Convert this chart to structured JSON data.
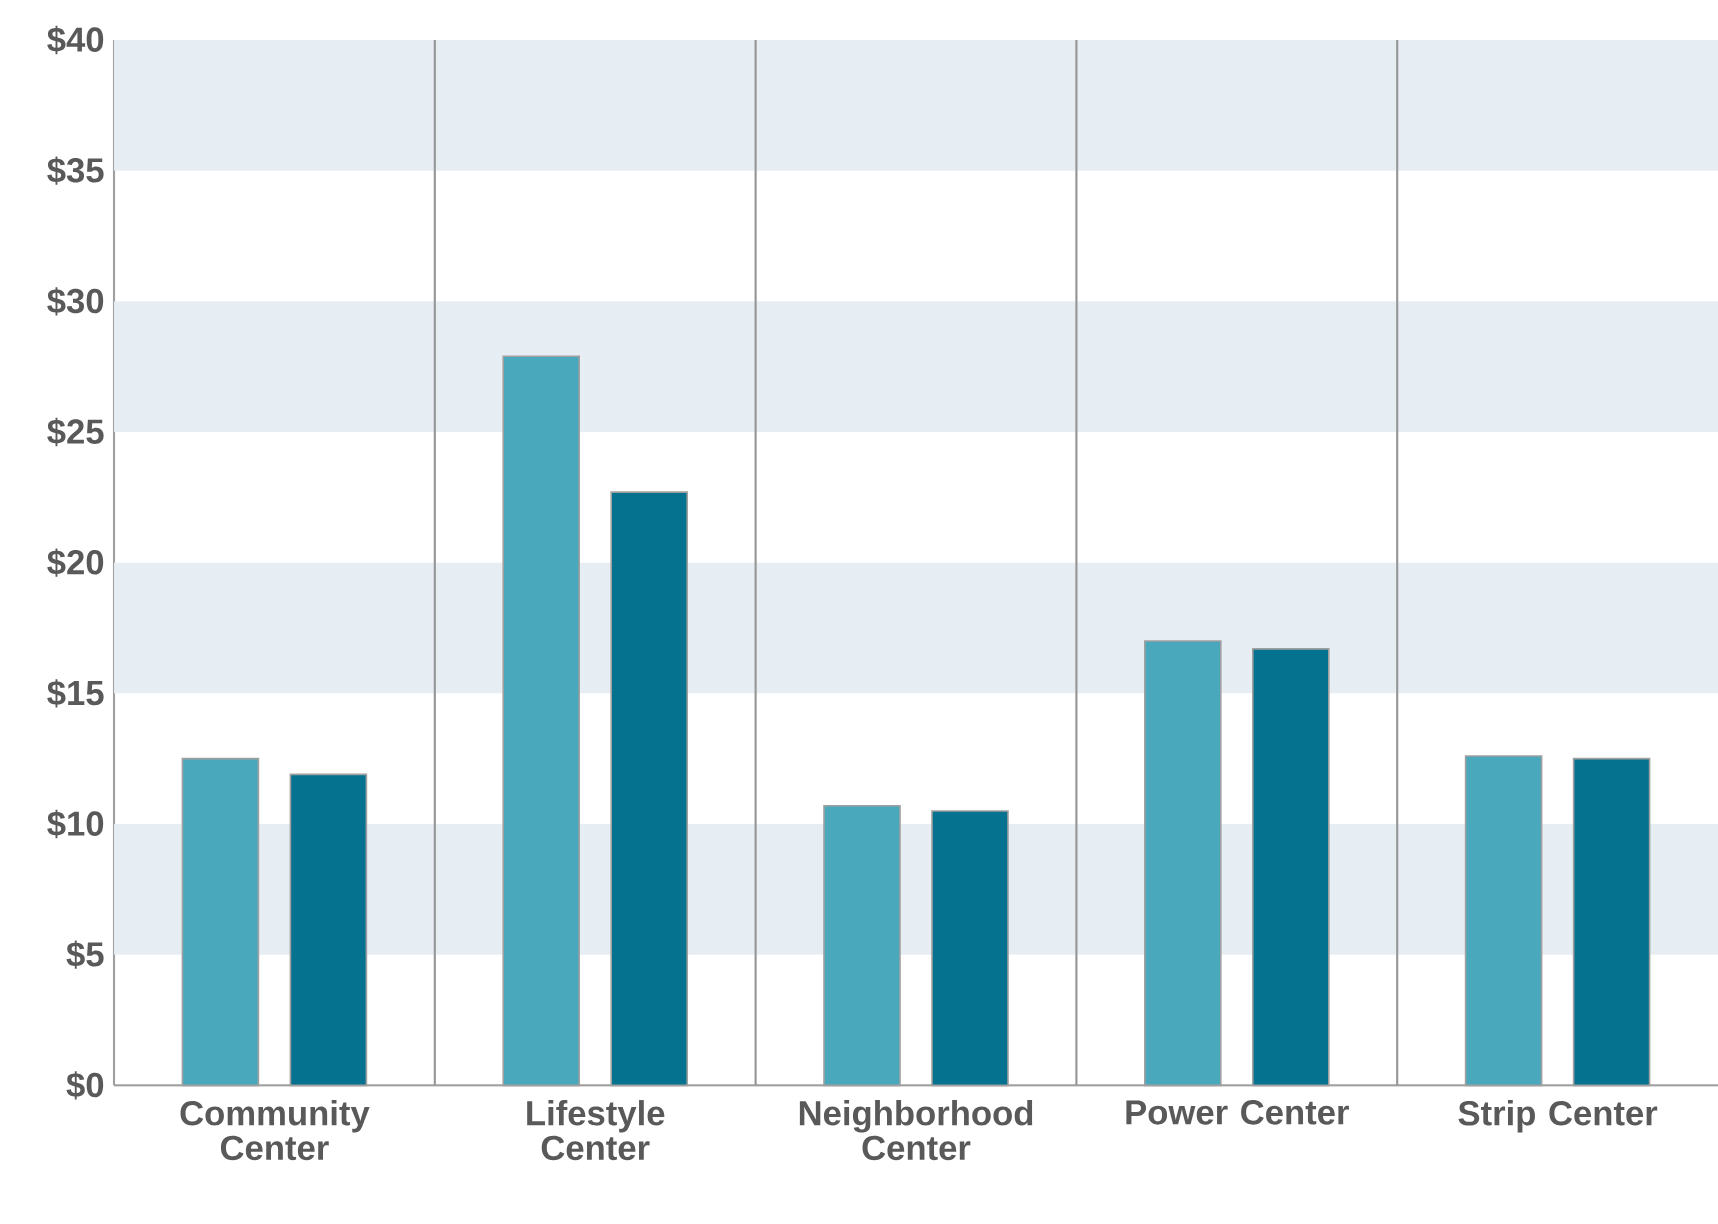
{
  "chart_data": {
    "type": "bar",
    "categories": [
      "Community Center",
      "Lifestyle Center",
      "Neighborhood Center",
      "Power Center",
      "Strip Center"
    ],
    "series": [
      {
        "color": "#4aa8bd",
        "values": [
          12.5,
          27.9,
          10.7,
          17.0,
          12.6
        ]
      },
      {
        "color": "#05728f",
        "values": [
          11.9,
          22.7,
          10.5,
          16.7,
          12.5
        ]
      }
    ],
    "ylim": [
      0,
      40
    ],
    "yticks": [
      {
        "value": 0,
        "label": "$0"
      },
      {
        "value": 5,
        "label": "$5"
      },
      {
        "value": 10,
        "label": "$10"
      },
      {
        "value": 15,
        "label": "$15"
      },
      {
        "value": 20,
        "label": "$20"
      },
      {
        "value": 25,
        "label": "$25"
      },
      {
        "value": 30,
        "label": "$30"
      },
      {
        "value": 35,
        "label": "$35"
      },
      {
        "value": 40,
        "label": "$40"
      }
    ],
    "bands": [
      {
        "axis": "y",
        "from": 5,
        "to": 10,
        "color": "#e6eef4"
      },
      {
        "axis": "y",
        "from": 15,
        "to": 20,
        "color": "#e6eef4"
      },
      {
        "axis": "y",
        "from": 25,
        "to": 30,
        "color": "#e6eef4"
      },
      {
        "axis": "y",
        "from": 35,
        "to": 40,
        "color": "#e6eef4"
      }
    ],
    "grid": "x"
  }
}
